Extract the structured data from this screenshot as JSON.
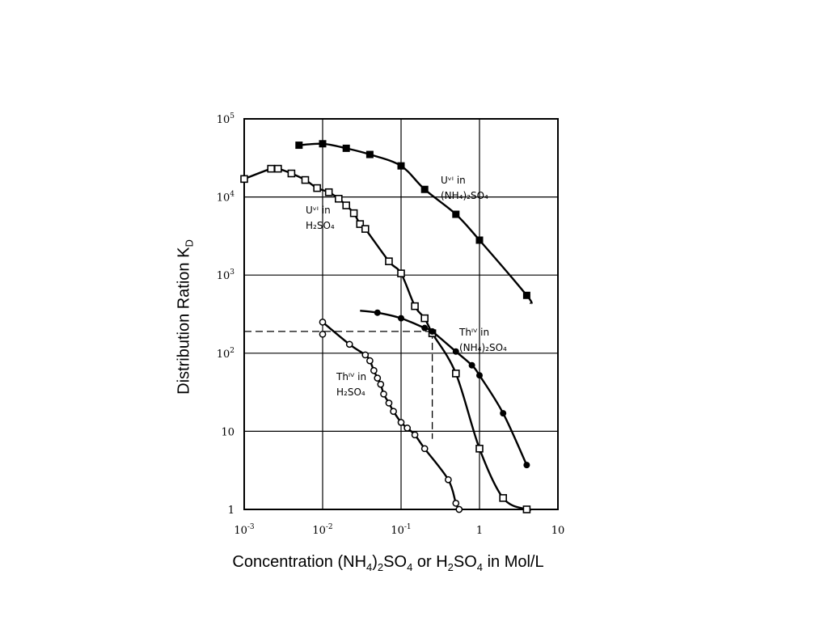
{
  "chart_data": {
    "type": "line",
    "xscale": "log",
    "yscale": "log",
    "xlim": [
      0.001,
      10
    ],
    "ylim": [
      1,
      100000
    ],
    "grid": true,
    "x_ticks": [
      {
        "value": 0.001,
        "base": "10",
        "exp": "-3"
      },
      {
        "value": 0.01,
        "base": "10",
        "exp": "-2"
      },
      {
        "value": 0.1,
        "base": "10",
        "exp": "-1"
      },
      {
        "value": 1,
        "base": "1",
        "exp": ""
      },
      {
        "value": 10,
        "base": "10",
        "exp": ""
      }
    ],
    "y_ticks": [
      {
        "value": 1,
        "base": "1",
        "exp": ""
      },
      {
        "value": 10,
        "base": "10",
        "exp": ""
      },
      {
        "value": 100,
        "base": "10",
        "exp": "2"
      },
      {
        "value": 1000,
        "base": "10",
        "exp": "3"
      },
      {
        "value": 10000,
        "base": "10",
        "exp": "4"
      },
      {
        "value": 100000,
        "base": "10",
        "exp": "5"
      }
    ],
    "ylabel": {
      "text": "Distribution Ration K",
      "sub": "D"
    },
    "xlabel": {
      "parts": [
        {
          "t": "Concentration (NH",
          "sub": false
        },
        {
          "t": "4",
          "sub": true
        },
        {
          "t": ")",
          "sub": false
        },
        {
          "t": "2",
          "sub": true
        },
        {
          "t": "SO",
          "sub": false
        },
        {
          "t": "4",
          "sub": true
        },
        {
          "t": " or H",
          "sub": false
        },
        {
          "t": "2",
          "sub": true
        },
        {
          "t": "SO",
          "sub": false
        },
        {
          "t": "4",
          "sub": true
        },
        {
          "t": " in Mol/L",
          "sub": false
        }
      ]
    },
    "series": [
      {
        "name": "U VI in (NH4)2SO4",
        "label_lines": [
          "Uᵛᴵ in",
          "(NH₄)₂SO₄"
        ],
        "marker": "filled-square",
        "points": [
          [
            0.005,
            46000
          ],
          [
            0.01,
            48000
          ],
          [
            0.02,
            42000
          ],
          [
            0.04,
            35000
          ],
          [
            0.1,
            25000
          ],
          [
            0.2,
            12500
          ],
          [
            0.5,
            6000
          ],
          [
            1,
            2800
          ],
          [
            4,
            550
          ]
        ],
        "curve_end": [
          4.5,
          430
        ]
      },
      {
        "name": "U VI in H2SO4",
        "label_lines": [
          "Uᵛᴵ in",
          "H₂SO₄"
        ],
        "marker": "open-square",
        "points": [
          [
            0.001,
            17000
          ],
          [
            0.0022,
            23000
          ],
          [
            0.0027,
            23000
          ],
          [
            0.004,
            20000
          ],
          [
            0.006,
            16500
          ],
          [
            0.0085,
            13000
          ],
          [
            0.012,
            11500
          ],
          [
            0.016,
            9500
          ],
          [
            0.02,
            7800
          ],
          [
            0.025,
            6200
          ],
          [
            0.03,
            4500
          ],
          [
            0.035,
            3900
          ],
          [
            0.07,
            1500
          ],
          [
            0.1,
            1050
          ],
          [
            0.15,
            400
          ],
          [
            0.2,
            280
          ],
          [
            0.25,
            180
          ],
          [
            0.5,
            55
          ],
          [
            1,
            6
          ],
          [
            2,
            1.4
          ],
          [
            4,
            1
          ]
        ],
        "curve_end": [
          4.5,
          1
        ]
      },
      {
        "name": "Th IV in (NH4)2SO4",
        "label_lines": [
          "Thᴵⱽ in",
          "(NH₄)₂SO₄"
        ],
        "marker": "filled-circle",
        "points": [
          [
            0.05,
            330
          ],
          [
            0.1,
            280
          ],
          [
            0.2,
            210
          ],
          [
            0.25,
            190
          ],
          [
            0.5,
            105
          ],
          [
            0.8,
            70
          ],
          [
            1,
            52
          ],
          [
            2,
            17
          ],
          [
            4,
            3.7
          ]
        ],
        "curve_start": [
          0.03,
          350
        ]
      },
      {
        "name": "Th IV in H2SO4",
        "label_lines": [
          "Thᴵⱽ in",
          "H₂SO₄"
        ],
        "marker": "open-circle",
        "points": [
          [
            0.01,
            250
          ],
          [
            0.01,
            175
          ],
          [
            0.022,
            130
          ],
          [
            0.035,
            95
          ],
          [
            0.04,
            80
          ],
          [
            0.045,
            60
          ],
          [
            0.05,
            48
          ],
          [
            0.055,
            40
          ],
          [
            0.06,
            30
          ],
          [
            0.07,
            23
          ],
          [
            0.08,
            18
          ],
          [
            0.1,
            13
          ],
          [
            0.12,
            11
          ],
          [
            0.15,
            9
          ],
          [
            0.2,
            6
          ],
          [
            0.4,
            2.4
          ],
          [
            0.5,
            1.2
          ],
          [
            0.55,
            1
          ]
        ]
      }
    ],
    "reference_lines": [
      {
        "name": "horizontal-reference-line",
        "from": [
          0.001,
          190
        ],
        "to": [
          0.25,
          190
        ]
      },
      {
        "name": "vertical-reference-line",
        "from": [
          0.25,
          190
        ],
        "to": [
          0.25,
          8
        ]
      }
    ],
    "colors": {
      "line": "#000000",
      "grid": "#000000",
      "background": "#ffffff"
    }
  }
}
